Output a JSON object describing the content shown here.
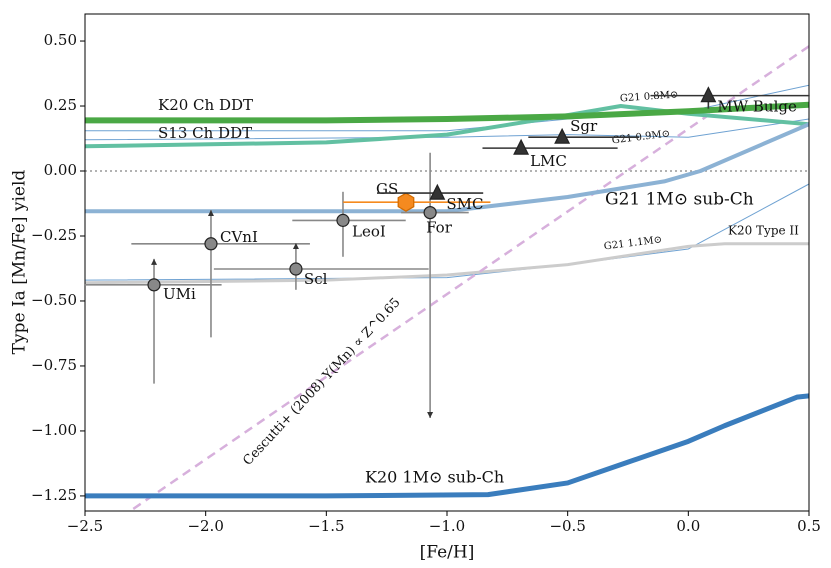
{
  "chart_data": {
    "type": "line",
    "xlabel": "[Fe/H]",
    "ylabel": "Type Ia [Mn/Fe] yield",
    "xlim": [
      -2.5,
      0.5
    ],
    "ylim": [
      -1.308,
      0.604
    ],
    "xticks": [
      {
        "value": -2.5,
        "label": "−2.5"
      },
      {
        "value": -2.0,
        "label": "−2.0"
      },
      {
        "value": -1.5,
        "label": "−1.5"
      },
      {
        "value": -1.0,
        "label": "−1.0"
      },
      {
        "value": -0.5,
        "label": "−0.5"
      },
      {
        "value": 0.0,
        "label": "0.0"
      },
      {
        "value": 0.5,
        "label": "0.5"
      }
    ],
    "yticks": [
      {
        "value": 0.5,
        "label": "0.50"
      },
      {
        "value": 0.25,
        "label": "0.25"
      },
      {
        "value": 0,
        "label": "0.00"
      },
      {
        "value": -0.25,
        "label": "−0.25"
      },
      {
        "value": -0.5,
        "label": "−0.50"
      },
      {
        "value": -0.75,
        "label": "−0.75"
      },
      {
        "value": -1.0,
        "label": "−1.00"
      },
      {
        "value": -1.25,
        "label": "−1.25"
      }
    ],
    "hline": 0,
    "series": [
      {
        "name": "K20 Ch DDT",
        "color": "#4aa845",
        "width": 6,
        "x": [
          -2.5,
          -1.5,
          -1.0,
          -0.5,
          0.0,
          0.5
        ],
        "values": [
          0.195,
          0.195,
          0.2,
          0.21,
          0.23,
          0.255
        ]
      },
      {
        "name": "S13 Ch DDT",
        "color": "#62c0a2",
        "width": 4,
        "x": [
          -2.5,
          -1.5,
          -1.0,
          -0.5,
          -0.28,
          0.0,
          0.5
        ],
        "values": [
          0.095,
          0.11,
          0.14,
          0.215,
          0.25,
          0.22,
          0.18
        ]
      },
      {
        "name": "G21 1M⊙ sub-Ch",
        "color": "#8cb2d4",
        "width": 4,
        "x": [
          -2.5,
          -1.5,
          -1.0,
          -0.5,
          -0.1,
          0.05,
          0.5
        ],
        "values": [
          -0.155,
          -0.155,
          -0.155,
          -0.1,
          -0.04,
          0.0,
          0.18
        ]
      },
      {
        "name": "K20 1M⊙ sub-Ch",
        "color": "#3a7dbd",
        "width": 5,
        "x": [
          -2.5,
          -1.5,
          -0.83,
          -0.5,
          -0.25,
          0.0,
          0.15,
          0.45,
          0.5
        ],
        "values": [
          -1.25,
          -1.25,
          -1.245,
          -1.2,
          -1.12,
          -1.04,
          -0.98,
          -0.87,
          -0.865
        ]
      },
      {
        "name": "K20 Type II",
        "color": "#cccccc",
        "width": 3,
        "x": [
          -2.5,
          -1.5,
          -1.0,
          -0.5,
          0.0,
          0.15,
          0.5
        ],
        "values": [
          -0.43,
          -0.42,
          -0.4,
          -0.36,
          -0.29,
          -0.28,
          -0.28
        ]
      },
      {
        "name": "Cescutti+ (2008) Y(Mn) ∝ Z^0.65",
        "color": "#d7b0dc",
        "width": 2.5,
        "dash": true,
        "x": [
          -2.3,
          0.5
        ],
        "values": [
          -1.3,
          0.48
        ]
      },
      {
        "name": "G21 0.8M⊙",
        "color": "#6fa2d2",
        "width": 1,
        "x": [
          -2.5,
          -1.0,
          -0.5,
          0.0,
          0.5
        ],
        "values": [
          0.155,
          0.155,
          0.2,
          0.23,
          0.33
        ]
      },
      {
        "name": "G21 0.9M⊙",
        "color": "#6fa2d2",
        "width": 1,
        "x": [
          -2.5,
          -1.0,
          -0.5,
          0.0,
          0.5
        ],
        "values": [
          0.12,
          0.13,
          0.14,
          0.13,
          0.2
        ]
      },
      {
        "name": "G21 1.1M⊙",
        "color": "#6fa2d2",
        "width": 1,
        "x": [
          -2.5,
          -1.0,
          -0.5,
          0.0,
          0.5
        ],
        "values": [
          -0.42,
          -0.41,
          -0.36,
          -0.3,
          -0.05
        ]
      }
    ],
    "points": [
      {
        "name": "UMi",
        "marker": "circle",
        "color": "#888888",
        "x": -2.214,
        "y": -0.438,
        "xerr": [
          0.29,
          0.28
        ],
        "yerr": [
          0.38,
          0.1
        ],
        "arrow": "up"
      },
      {
        "name": "CVnI",
        "marker": "circle",
        "color": "#888888",
        "x": -1.978,
        "y": -0.28,
        "xerr": [
          0.33,
          0.41
        ],
        "yerr": [
          0.36,
          0.13
        ],
        "arrow": "up"
      },
      {
        "name": "Scl",
        "marker": "circle",
        "color": "#888888",
        "x": -1.626,
        "y": -0.377,
        "xerr": [
          0.34,
          0.55
        ],
        "yerr": [
          0.08,
          0.1
        ],
        "arrow": "up"
      },
      {
        "name": "LeoI",
        "marker": "circle",
        "color": "#888888",
        "x": -1.431,
        "y": -0.19,
        "xerr": [
          0.21,
          0.26
        ],
        "yerr": [
          0.14,
          0.11
        ]
      },
      {
        "name": "For",
        "marker": "circle",
        "color": "#888888",
        "x": -1.07,
        "y": -0.16,
        "xerr": [
          0.12,
          0.16
        ],
        "yerr": [
          0.79,
          0.23
        ],
        "arrow": "down"
      },
      {
        "name": "GS",
        "marker": "hexagon",
        "color": "#f58a1f",
        "x": -1.17,
        "y": -0.12,
        "xerr": [
          0.26,
          0.35
        ]
      },
      {
        "name": "SMC",
        "marker": "triangle",
        "color": "#333333",
        "x": -1.04,
        "y": -0.085,
        "xerr": [
          0.25,
          0.19
        ]
      },
      {
        "name": "LMC",
        "marker": "triangle",
        "color": "#333333",
        "x": -0.693,
        "y": 0.088,
        "xerr": [
          0.16,
          0.4
        ]
      },
      {
        "name": "Sgr",
        "marker": "triangle",
        "color": "#333333",
        "x": -0.523,
        "y": 0.13,
        "xerr": [
          0.14,
          0.32
        ]
      },
      {
        "name": "MW Bulge",
        "marker": "triangle",
        "color": "#333333",
        "x": 0.083,
        "y": 0.29,
        "xerr": [
          0.24,
          0.42
        ],
        "yerr": [
          0.05,
          0.03
        ]
      }
    ]
  }
}
